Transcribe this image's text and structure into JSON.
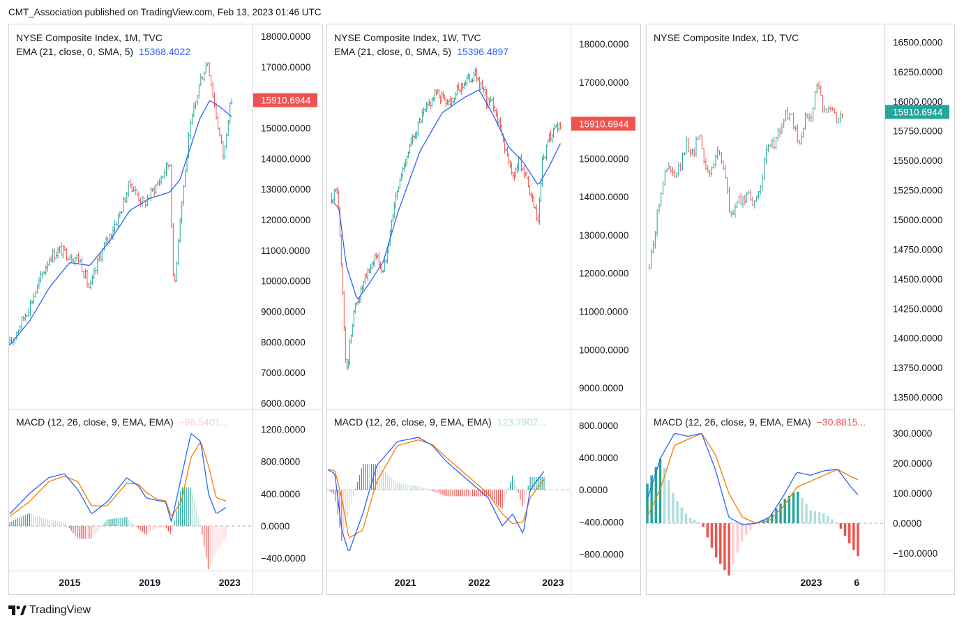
{
  "header": {
    "text": "CMT_Association published on TradingView.com, Feb 13, 2023 01:46 UTC"
  },
  "footer": {
    "brand": "TradingView"
  },
  "colors": {
    "up": "#26a69a",
    "down": "#ef5350",
    "ema": "#2962ff",
    "signal": "#f57c00",
    "hist_up_strong": "#26a69a",
    "hist_up_weak": "#b2dfdb",
    "hist_down_strong": "#ef5350",
    "hist_down_weak": "#ffcdd2",
    "last_red": "#ef5350",
    "last_green": "#26a69a"
  },
  "chart_data": [
    {
      "type": "candlestick",
      "title": "NYSE Composite Index, 1M, TVC",
      "ema_label": "EMA (21, close, 0, SMA, 5)",
      "ema_value": "15368.4022",
      "last_price": "15910.6944",
      "last_color": "red",
      "price_axis": {
        "ticks": [
          "18000.0000",
          "17000.0000",
          "16000.0000",
          "15000.0000",
          "14000.0000",
          "13000.0000",
          "12000.0000",
          "11000.0000",
          "10000.0000",
          "9000.0000",
          "8000.0000",
          "7000.0000",
          "6000.0000"
        ],
        "range": [
          6000,
          18000
        ]
      },
      "x_ticks": [
        "2015",
        "2019",
        "2023"
      ],
      "price_series": {
        "x": [
          2012.0,
          2013.0,
          2014.0,
          2014.5,
          2015.5,
          2016.0,
          2016.5,
          2017.5,
          2018.0,
          2018.7,
          2019.0,
          2019.5,
          2020.0,
          2020.2,
          2020.5,
          2021.0,
          2021.5,
          2021.9,
          2022.3,
          2022.7,
          2022.9,
          2023.1
        ],
        "y": [
          7900,
          9200,
          10800,
          11000,
          10700,
          9700,
          10800,
          12200,
          13200,
          12500,
          12800,
          13300,
          13900,
          9500,
          12000,
          14900,
          16500,
          17200,
          15500,
          14000,
          15300,
          15910
        ]
      },
      "ema_series": {
        "x": [
          2012.0,
          2013.0,
          2014.0,
          2015.0,
          2016.0,
          2017.0,
          2018.0,
          2019.0,
          2020.0,
          2020.5,
          2021.0,
          2021.5,
          2022.0,
          2022.5,
          2023.1
        ],
        "y": [
          7900,
          8700,
          9800,
          10600,
          10500,
          11300,
          12300,
          12700,
          12900,
          13300,
          14300,
          15300,
          15900,
          15700,
          15368
        ]
      },
      "macd": {
        "label": "MACD (12, 26, close, 9, EMA, EMA)",
        "value": "−98.5401...",
        "value_color": "weak-red",
        "axis_ticks": [
          "1200.0000",
          "800.0000",
          "400.0000",
          "0.0000",
          "−400.0000"
        ],
        "range": [
          -450,
          1300
        ],
        "x": [
          2012.0,
          2013.0,
          2014.0,
          2014.8,
          2015.5,
          2016.2,
          2017.0,
          2018.0,
          2018.6,
          2019.0,
          2019.5,
          2020.0,
          2020.3,
          2020.8,
          2021.3,
          2021.8,
          2022.2,
          2022.6,
          2023.1
        ],
        "macd_line": [
          150,
          400,
          600,
          650,
          450,
          150,
          300,
          600,
          500,
          350,
          320,
          300,
          50,
          600,
          1150,
          1050,
          400,
          150,
          230
        ],
        "signal_line": [
          120,
          300,
          550,
          620,
          550,
          250,
          250,
          530,
          520,
          420,
          340,
          310,
          120,
          300,
          850,
          1050,
          750,
          350,
          310
        ]
      }
    },
    {
      "type": "candlestick",
      "title": "NYSE Composite Index, 1W, TVC",
      "ema_label": "EMA (21, close, 0, SMA, 5)",
      "ema_value": "15396.4897",
      "last_price": "15910.6944",
      "last_color": "red",
      "price_axis": {
        "ticks": [
          "18000.0000",
          "17000.0000",
          "16000.0000",
          "15000.0000",
          "14000.0000",
          "13000.0000",
          "12000.0000",
          "11000.0000",
          "10000.0000",
          "9000.0000"
        ],
        "range": [
          8600,
          18200
        ]
      },
      "x_ticks": [
        "2021",
        "2022",
        "2023"
      ],
      "price_series": {
        "x": [
          2020.0,
          2020.08,
          2020.15,
          2020.2,
          2020.3,
          2020.45,
          2020.6,
          2020.7,
          2020.85,
          2021.0,
          2021.2,
          2021.4,
          2021.6,
          2021.8,
          2021.95,
          2022.1,
          2022.2,
          2022.35,
          2022.45,
          2022.55,
          2022.7,
          2022.8,
          2022.85,
          2022.95,
          2023.1
        ],
        "y": [
          14000,
          14200,
          11500,
          9300,
          11000,
          11800,
          12500,
          12000,
          13800,
          15000,
          16000,
          16700,
          16500,
          17000,
          17200,
          16500,
          16400,
          15300,
          14500,
          15000,
          14000,
          13300,
          14800,
          15500,
          15910
        ]
      },
      "ema_series": {
        "x": [
          2020.0,
          2020.1,
          2020.2,
          2020.35,
          2020.5,
          2020.7,
          2020.9,
          2021.2,
          2021.5,
          2021.8,
          2022.0,
          2022.2,
          2022.4,
          2022.6,
          2022.8,
          2022.95,
          2023.1
        ],
        "y": [
          13900,
          13700,
          12200,
          11300,
          11700,
          12300,
          13600,
          15200,
          16200,
          16600,
          16800,
          16100,
          15300,
          14900,
          14300,
          14800,
          15396
        ]
      },
      "macd": {
        "label": "MACD (12, 26, close, 9, EMA, EMA)",
        "value": "123.7902...",
        "value_color": "weak-green",
        "axis_ticks": [
          "800.0000",
          "400.0000",
          "0.0000",
          "−400.0000",
          "−800.0000"
        ],
        "range": [
          -900,
          850
        ],
        "x": [
          2020.0,
          2020.1,
          2020.2,
          2020.3,
          2020.5,
          2020.7,
          2021.0,
          2021.3,
          2021.5,
          2021.7,
          2021.9,
          2022.1,
          2022.3,
          2022.5,
          2022.65,
          2022.8,
          2022.9,
          2023.1
        ],
        "macd_line": [
          250,
          200,
          -500,
          -780,
          -300,
          300,
          600,
          650,
          550,
          350,
          200,
          50,
          -100,
          -450,
          -300,
          -550,
          0,
          230
        ],
        "signal_line": [
          250,
          240,
          -100,
          -600,
          -500,
          100,
          550,
          620,
          560,
          400,
          250,
          100,
          -50,
          -300,
          -420,
          -400,
          -100,
          130
        ]
      }
    },
    {
      "type": "candlestick",
      "title": "NYSE Composite Index, 1D, TVC",
      "ema_label": "",
      "ema_value": "",
      "last_price": "15910.6944",
      "last_color": "green",
      "price_axis": {
        "ticks": [
          "16500.0000",
          "16250.0000",
          "16000.0000",
          "15750.0000",
          "15500.0000",
          "15250.0000",
          "15000.0000",
          "14750.0000",
          "14500.0000",
          "14250.0000",
          "14000.0000",
          "13750.0000",
          "13500.0000"
        ],
        "range": [
          13450,
          16550
        ]
      },
      "x_ticks": [
        "2023",
        "6"
      ],
      "price_series": {
        "x": [
          0,
          3,
          6,
          9,
          12,
          15,
          18,
          21,
          24,
          27,
          30,
          33,
          36,
          39,
          42,
          45,
          48,
          51,
          54,
          57,
          60,
          63,
          66,
          69,
          72,
          75,
          78,
          81,
          84,
          87,
          90,
          93
        ],
        "y": [
          14600,
          14950,
          15300,
          15450,
          15350,
          15450,
          15650,
          15550,
          15750,
          15450,
          15400,
          15600,
          15450,
          15000,
          15150,
          15150,
          15250,
          15100,
          15350,
          15600,
          15650,
          15750,
          15900,
          15850,
          15600,
          15850,
          15900,
          16150,
          15900,
          16000,
          15850,
          15910
        ]
      },
      "macd": {
        "label": "MACD (12, 26, close, 9, EMA, EMA)",
        "value": "−30.8815...",
        "value_color": "red",
        "axis_ticks": [
          "300.0000",
          "200.0000",
          "100.0000",
          "0.0000",
          "−100.0000"
        ],
        "range": [
          -130,
          340
        ],
        "x": [
          0,
          6,
          12,
          18,
          24,
          30,
          36,
          42,
          48,
          54,
          60,
          66,
          72,
          78,
          84,
          90,
          93
        ],
        "macd_line": [
          80,
          220,
          300,
          290,
          300,
          180,
          20,
          -5,
          0,
          20,
          90,
          170,
          160,
          175,
          180,
          120,
          95
        ],
        "signal_line": [
          20,
          120,
          260,
          280,
          300,
          230,
          100,
          20,
          0,
          10,
          55,
          120,
          140,
          160,
          180,
          155,
          145
        ]
      }
    }
  ]
}
